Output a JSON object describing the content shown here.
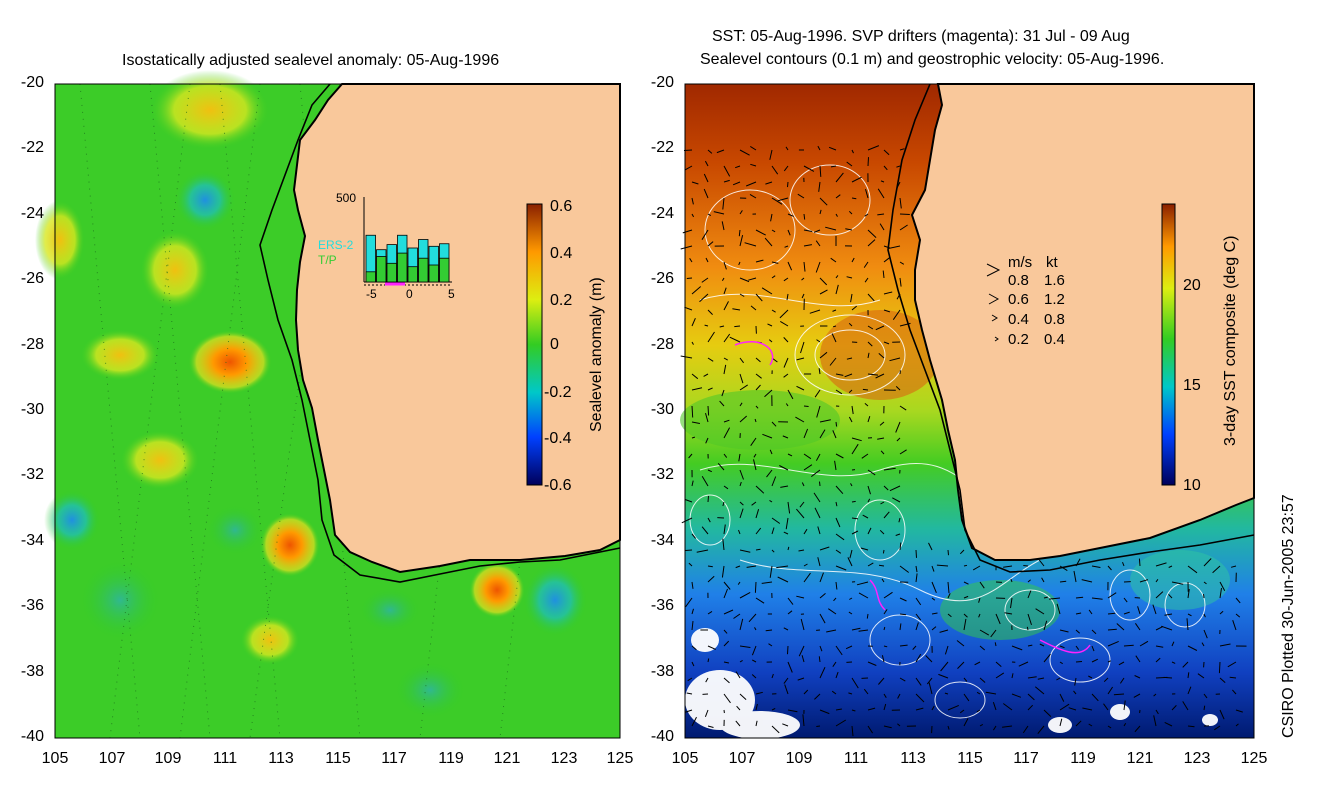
{
  "left_panel": {
    "title": "Isostatically adjusted sealevel anomaly: 05-Aug-1996",
    "colorbar": {
      "label": "Sealevel anomaly (m)",
      "ticks": [
        "0.6",
        "0.4",
        "0.2",
        "0",
        "-0.2",
        "-0.4",
        "-0.6"
      ],
      "range": [
        -0.6,
        0.6
      ]
    },
    "histogram": {
      "ymax_label": "500",
      "series_labels": [
        "ERS-2",
        "T/P"
      ],
      "x_ticks": [
        "-5",
        "0",
        "5"
      ],
      "series_colors": [
        "#22dddd",
        "#33cc33"
      ],
      "ers2_values": [
        0.55,
        0.38,
        0.44,
        0.55,
        0.4,
        0.5,
        0.42,
        0.45
      ],
      "tp_values": [
        0.12,
        0.3,
        0.22,
        0.34,
        0.18,
        0.28,
        0.2,
        0.28
      ]
    }
  },
  "right_panel": {
    "title_line1": "SST: 05-Aug-1996. SVP drifters (magenta): 31 Jul - 09 Aug",
    "title_line2": "Sealevel contours (0.1 m) and geostrophic velocity: 05-Aug-1996.",
    "colorbar": {
      "label": "3-day SST composite (deg C)",
      "ticks": [
        "20",
        "15",
        "10"
      ],
      "range": [
        10,
        24
      ]
    },
    "velocity_legend": {
      "headers": [
        "m/s",
        "kt"
      ],
      "rows": [
        {
          "ms": "0.8",
          "kt": "1.6"
        },
        {
          "ms": "0.6",
          "kt": "1.2"
        },
        {
          "ms": "0.4",
          "kt": "0.8"
        },
        {
          "ms": "0.2",
          "kt": "0.4"
        }
      ]
    }
  },
  "axes": {
    "lat_ticks": [
      "-20",
      "-22",
      "-24",
      "-26",
      "-28",
      "-30",
      "-32",
      "-34",
      "-36",
      "-38",
      "-40"
    ],
    "lon_ticks": [
      "105",
      "107",
      "109",
      "111",
      "113",
      "115",
      "117",
      "119",
      "121",
      "123",
      "125"
    ]
  },
  "credit": "CSIRO Plotted 30-Jun-2005 23:57",
  "colors": {
    "land": "#f9c89b",
    "ocean_green": "#33cc22",
    "coast": "#000000"
  }
}
